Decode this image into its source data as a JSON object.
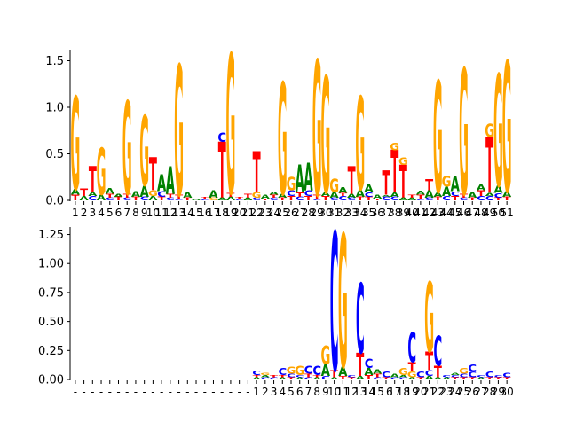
{
  "colors": {
    "A": "#008000",
    "C": "#0000ff",
    "G": "#ffa500",
    "T": "#ff0000",
    "axis": "#000000"
  },
  "chart_data": [
    {
      "type": "sequence_logo",
      "ylim": [
        0,
        1.6
      ],
      "yticks": [
        "0.0",
        "0.5",
        "1.0",
        "1.5"
      ],
      "ytick_values": [
        0,
        0.5,
        1.0,
        1.5
      ],
      "xtick_labels": [
        "1",
        "2",
        "3",
        "4",
        "5",
        "6",
        "7",
        "8",
        "9",
        "10",
        "11",
        "12",
        "13",
        "14",
        "15",
        "16",
        "17",
        "18",
        "19",
        "20",
        "21",
        "22",
        "23",
        "24",
        "25",
        "26",
        "27",
        "28",
        "29",
        "30",
        "31",
        "32",
        "33",
        "34",
        "35",
        "36",
        "37",
        "38",
        "39",
        "40",
        "41",
        "42",
        "43",
        "44",
        "45",
        "46",
        "47",
        "48",
        "49",
        "50",
        "51"
      ],
      "positions": [
        [
          [
            "T",
            0.06
          ],
          [
            "A",
            0.06
          ],
          [
            "G",
            1.0
          ]
        ],
        [
          [
            "A",
            0.05
          ],
          [
            "T",
            0.08
          ]
        ],
        [
          [
            "C",
            0.05
          ],
          [
            "A",
            0.04
          ],
          [
            "T",
            0.28
          ]
        ],
        [
          [
            "A",
            0.06
          ],
          [
            "G",
            0.5
          ]
        ],
        [
          [
            "C",
            0.03
          ],
          [
            "T",
            0.04
          ],
          [
            "A",
            0.06
          ]
        ],
        [
          [
            "T",
            0.04
          ],
          [
            "A",
            0.03
          ]
        ],
        [
          [
            "C",
            0.03
          ],
          [
            "T",
            0.04
          ],
          [
            "G",
            1.0
          ]
        ],
        [
          [
            "T",
            0.04
          ],
          [
            "A",
            0.06
          ]
        ],
        [
          [
            "C",
            0.04
          ],
          [
            "A",
            0.12
          ],
          [
            "G",
            0.75
          ]
        ],
        [
          [
            "A",
            0.05
          ],
          [
            "G",
            0.06
          ],
          [
            "T",
            0.35
          ]
        ],
        [
          [
            "T",
            0.04
          ],
          [
            "C",
            0.06
          ],
          [
            "A",
            0.18
          ]
        ],
        [
          [
            "C",
            0.03
          ],
          [
            "T",
            0.04
          ],
          [
            "A",
            0.3
          ]
        ],
        [
          [
            "C",
            0.02
          ],
          [
            "T",
            0.04
          ],
          [
            "G",
            1.4
          ]
        ],
        [
          [
            "T",
            0.03
          ],
          [
            "A",
            0.06
          ]
        ],
        [
          [
            "A",
            0.02
          ]
        ],
        [
          [
            "C",
            0.02
          ],
          [
            "T",
            0.02
          ]
        ],
        [
          [
            "G",
            0.03
          ],
          [
            "A",
            0.08
          ]
        ],
        [
          [
            "A",
            0.03
          ],
          [
            "T",
            0.6
          ],
          [
            "C",
            0.1
          ]
        ],
        [
          [
            "A",
            0.04
          ],
          [
            "T",
            0.04
          ],
          [
            "G",
            1.5
          ]
        ],
        [
          [
            "C",
            0.02
          ],
          [
            "T",
            0.02
          ]
        ],
        [
          [
            "A",
            0.03
          ],
          [
            "T",
            0.04
          ]
        ],
        [
          [
            "C",
            0.03
          ],
          [
            "G",
            0.06
          ],
          [
            "T",
            0.44
          ]
        ],
        [
          [
            "T",
            0.02
          ],
          [
            "A",
            0.04
          ]
        ],
        [
          [
            "C",
            0.03
          ],
          [
            "T",
            0.03
          ],
          [
            "A",
            0.03
          ]
        ],
        [
          [
            "T",
            0.03
          ],
          [
            "A",
            0.04
          ],
          [
            "G",
            1.2
          ]
        ],
        [
          [
            "T",
            0.05
          ],
          [
            "C",
            0.06
          ],
          [
            "G",
            0.14
          ]
        ],
        [
          [
            "C",
            0.04
          ],
          [
            "T",
            0.05
          ],
          [
            "A",
            0.3
          ]
        ],
        [
          [
            "T",
            0.05
          ],
          [
            "C",
            0.06
          ],
          [
            "A",
            0.3
          ]
        ],
        [
          [
            "C",
            0.02
          ],
          [
            "T",
            0.04
          ],
          [
            "G",
            1.45
          ]
        ],
        [
          [
            "T",
            0.05
          ],
          [
            "A",
            0.04
          ],
          [
            "G",
            1.25
          ]
        ],
        [
          [
            "C",
            0.03
          ],
          [
            "A",
            0.06
          ],
          [
            "G",
            0.14
          ]
        ],
        [
          [
            "C",
            0.05
          ],
          [
            "T",
            0.03
          ],
          [
            "A",
            0.06
          ]
        ],
        [
          [
            "C",
            0.03
          ],
          [
            "A",
            0.04
          ],
          [
            "T",
            0.3
          ]
        ],
        [
          [
            "T",
            0.04
          ],
          [
            "A",
            0.08
          ],
          [
            "G",
            1.0
          ]
        ],
        [
          [
            "T",
            0.04
          ],
          [
            "C",
            0.05
          ],
          [
            "A",
            0.08
          ]
        ],
        [
          [
            "T",
            0.02
          ],
          [
            "A",
            0.04
          ]
        ],
        [
          [
            "C",
            0.04
          ],
          [
            "A",
            0.02
          ],
          [
            "T",
            0.26
          ]
        ],
        [
          [
            "C",
            0.04
          ],
          [
            "A",
            0.05
          ],
          [
            "T",
            0.45
          ],
          [
            "G",
            0.08
          ]
        ],
        [
          [
            "A",
            0.03
          ],
          [
            "T",
            0.35
          ],
          [
            "G",
            0.08
          ]
        ],
        [
          [
            "A",
            0.03
          ],
          [
            "T",
            0.03
          ]
        ],
        [
          [
            "C",
            0.02
          ],
          [
            "T",
            0.04
          ],
          [
            "A",
            0.04
          ]
        ],
        [
          [
            "C",
            0.03
          ],
          [
            "A",
            0.08
          ],
          [
            "T",
            0.12
          ]
        ],
        [
          [
            "T",
            0.04
          ],
          [
            "A",
            0.05
          ],
          [
            "G",
            1.2
          ]
        ],
        [
          [
            "C",
            0.05
          ],
          [
            "A",
            0.1
          ],
          [
            "G",
            0.12
          ]
        ],
        [
          [
            "T",
            0.05
          ],
          [
            "C",
            0.05
          ],
          [
            "A",
            0.16
          ]
        ],
        [
          [
            "C",
            0.03
          ],
          [
            "T",
            0.04
          ],
          [
            "G",
            1.35
          ]
        ],
        [
          [
            "T",
            0.03
          ],
          [
            "A",
            0.06
          ]
        ],
        [
          [
            "C",
            0.05
          ],
          [
            "T",
            0.06
          ],
          [
            "A",
            0.06
          ]
        ],
        [
          [
            "C",
            0.05
          ],
          [
            "A",
            0.03
          ],
          [
            "T",
            0.6
          ],
          [
            "G",
            0.14
          ]
        ],
        [
          [
            "T",
            0.03
          ],
          [
            "C",
            0.05
          ],
          [
            "A",
            0.08
          ],
          [
            "G",
            1.2
          ]
        ],
        [
          [
            "T",
            0.04
          ],
          [
            "A",
            0.06
          ],
          [
            "G",
            1.4
          ]
        ]
      ]
    },
    {
      "type": "sequence_logo",
      "ylim": [
        0,
        1.3
      ],
      "yticks": [
        "0.00",
        "0.25",
        "0.50",
        "0.75",
        "1.00",
        "1.25"
      ],
      "ytick_values": [
        0,
        0.25,
        0.5,
        0.75,
        1.0,
        1.25
      ],
      "xtick_labels": [
        "-",
        "-",
        "-",
        "-",
        "-",
        "-",
        "-",
        "-",
        "-",
        "-",
        "-",
        "-",
        "-",
        "-",
        "-",
        "-",
        "-",
        "-",
        "-",
        "-",
        "-",
        "1",
        "2",
        "3",
        "4",
        "5",
        "6",
        "7",
        "8",
        "9",
        "10",
        "11",
        "12",
        "13",
        "14",
        "15",
        "16",
        "17",
        "18",
        "19",
        "20",
        "21",
        "22",
        "23",
        "24",
        "25",
        "26",
        "27",
        "28",
        "29",
        "30"
      ],
      "positions": [
        [],
        [],
        [],
        [],
        [],
        [],
        [],
        [],
        [],
        [],
        [],
        [],
        [],
        [],
        [],
        [],
        [],
        [],
        [],
        [],
        [],
        [
          [
            "A",
            0.02
          ],
          [
            "T",
            0.02
          ],
          [
            "C",
            0.04
          ]
        ],
        [
          [
            "C",
            0.02
          ],
          [
            "A",
            0.02
          ],
          [
            "G",
            0.02
          ]
        ],
        [
          [
            "C",
            0.02
          ],
          [
            "T",
            0.02
          ]
        ],
        [
          [
            "A",
            0.02
          ],
          [
            "T",
            0.02
          ],
          [
            "C",
            0.06
          ]
        ],
        [
          [
            "T",
            0.02
          ],
          [
            "C",
            0.03
          ],
          [
            "G",
            0.06
          ]
        ],
        [
          [
            "A",
            0.02
          ],
          [
            "C",
            0.02
          ],
          [
            "G",
            0.08
          ]
        ],
        [
          [
            "C",
            0.02
          ],
          [
            "T",
            0.03
          ],
          [
            "C",
            0.07
          ]
        ],
        [
          [
            "A",
            0.02
          ],
          [
            "T",
            0.02
          ],
          [
            "C",
            0.08
          ]
        ],
        [
          [
            "C",
            0.03
          ],
          [
            "A",
            0.1
          ],
          [
            "G",
            0.16
          ]
        ],
        [
          [
            "A",
            0.02
          ],
          [
            "T",
            0.06
          ],
          [
            "C",
            1.2
          ]
        ],
        [
          [
            "T",
            0.03
          ],
          [
            "A",
            0.08
          ],
          [
            "G",
            1.15
          ]
        ],
        [
          [
            "T",
            0.02
          ],
          [
            "C",
            0.02
          ]
        ],
        [
          [
            "A",
            0.03
          ],
          [
            "T",
            0.2
          ],
          [
            "C",
            0.6
          ]
        ],
        [
          [
            "T",
            0.04
          ],
          [
            "A",
            0.06
          ],
          [
            "C",
            0.08
          ]
        ],
        [
          [
            "C",
            0.02
          ],
          [
            "T",
            0.03
          ],
          [
            "A",
            0.04
          ]
        ],
        [
          [
            "T",
            0.02
          ],
          [
            "C",
            0.05
          ]
        ],
        [
          [
            "C",
            0.02
          ],
          [
            "A",
            0.03
          ]
        ],
        [
          [
            "C",
            0.02
          ],
          [
            "A",
            0.02
          ],
          [
            "G",
            0.06
          ]
        ],
        [
          [
            "A",
            0.02
          ],
          [
            "G",
            0.05
          ],
          [
            "T",
            0.08
          ],
          [
            "C",
            0.26
          ]
        ],
        [
          [
            "T",
            0.02
          ],
          [
            "C",
            0.05
          ]
        ],
        [
          [
            "A",
            0.03
          ],
          [
            "C",
            0.05
          ],
          [
            "T",
            0.16
          ],
          [
            "G",
            0.6
          ]
        ],
        [
          [
            "A",
            0.02
          ],
          [
            "T",
            0.1
          ],
          [
            "C",
            0.26
          ]
        ],
        [
          [
            "A",
            0.02
          ],
          [
            "C",
            0.02
          ]
        ],
        [
          [
            "T",
            0.02
          ],
          [
            "C",
            0.02
          ],
          [
            "A",
            0.02
          ]
        ],
        [
          [
            "T",
            0.02
          ],
          [
            "C",
            0.03
          ],
          [
            "G",
            0.05
          ]
        ],
        [
          [
            "T",
            0.02
          ],
          [
            "C",
            0.05
          ],
          [
            "C",
            0.06
          ]
        ],
        [
          [
            "A",
            0.02
          ],
          [
            "C",
            0.02
          ]
        ],
        [
          [
            "T",
            0.02
          ],
          [
            "C",
            0.05
          ]
        ],
        [
          [
            "T",
            0.02
          ],
          [
            "C",
            0.02
          ]
        ],
        [
          [
            "T",
            0.02
          ],
          [
            "C",
            0.04
          ]
        ]
      ]
    }
  ]
}
